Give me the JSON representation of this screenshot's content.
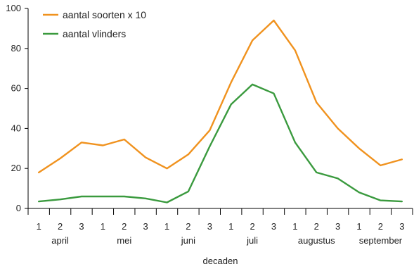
{
  "chart_data": {
    "type": "line",
    "xlabel": "decaden",
    "ylabel": "",
    "ylim": [
      0,
      100
    ],
    "yticks": [
      0,
      20,
      40,
      60,
      80,
      100
    ],
    "x": [
      "1",
      "2",
      "3",
      "1",
      "2",
      "3",
      "1",
      "2",
      "3",
      "1",
      "2",
      "3",
      "1",
      "2",
      "3",
      "1",
      "2",
      "3"
    ],
    "groups": [
      {
        "label": "april",
        "start": 0,
        "end": 2
      },
      {
        "label": "mei",
        "start": 3,
        "end": 5
      },
      {
        "label": "juni",
        "start": 6,
        "end": 8
      },
      {
        "label": "juli",
        "start": 9,
        "end": 11
      },
      {
        "label": "augustus",
        "start": 12,
        "end": 14
      },
      {
        "label": "september",
        "start": 15,
        "end": 17
      }
    ],
    "series": [
      {
        "name": "aantal soorten x 10",
        "color": "#f0921e",
        "values": [
          18,
          25,
          33,
          31.5,
          34.5,
          25.5,
          20,
          27,
          39,
          63,
          84,
          94,
          79,
          53,
          40,
          30,
          21.5,
          24.5
        ]
      },
      {
        "name": "aantal vlinders",
        "color": "#3a9a3e",
        "values": [
          3.5,
          4.5,
          6,
          6,
          6,
          5,
          3,
          8.5,
          31,
          52,
          62,
          57.5,
          33,
          18,
          15,
          8,
          4,
          3.5
        ]
      }
    ],
    "legend_position": "top-left",
    "grid": false
  }
}
